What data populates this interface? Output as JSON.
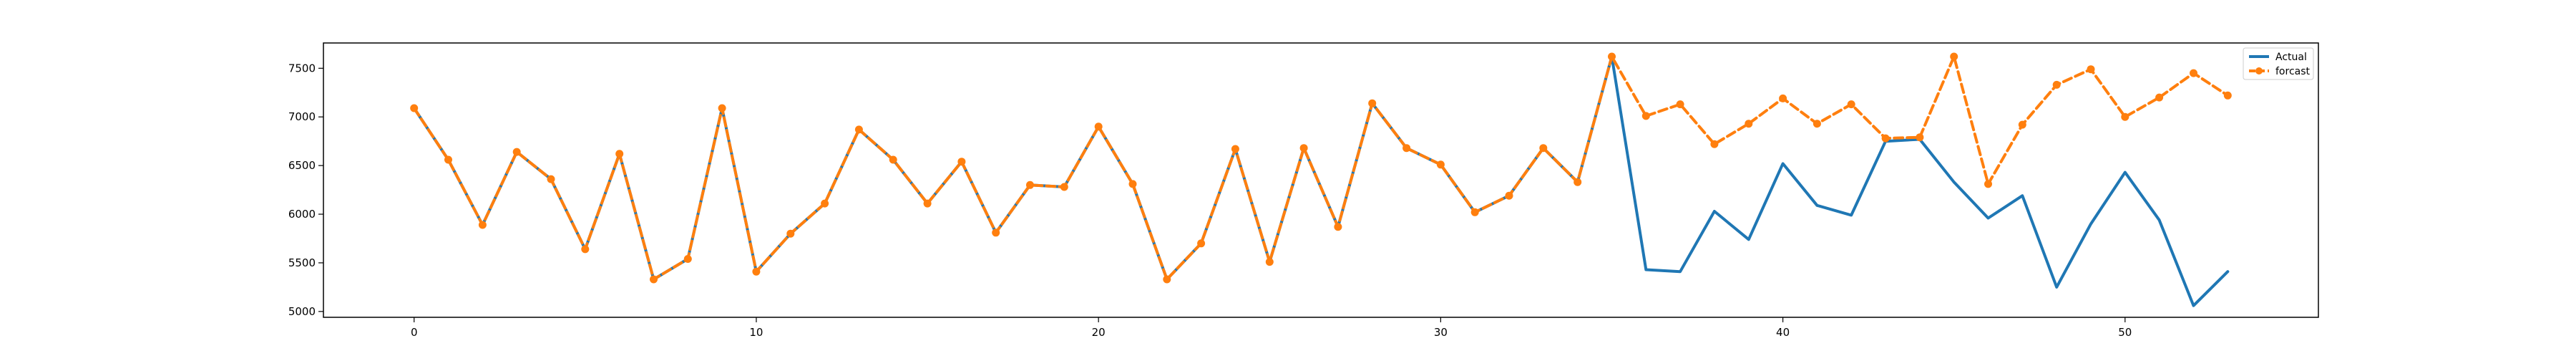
{
  "chart_data": {
    "type": "line",
    "title": "",
    "xlabel": "",
    "ylabel": "",
    "xlim": [
      -2.65,
      55.65
    ],
    "ylim": [
      4940,
      7760
    ],
    "x_ticks": [
      0,
      10,
      20,
      30,
      40,
      50
    ],
    "y_ticks": [
      5000,
      5500,
      6000,
      6500,
      7000,
      7500
    ],
    "grid": false,
    "legend_position": "top-right",
    "series": [
      {
        "name": "Actual",
        "color": "#1f77b4",
        "style": "solid",
        "marker": "none",
        "x": [
          0,
          1,
          2,
          3,
          4,
          5,
          6,
          7,
          8,
          9,
          10,
          11,
          12,
          13,
          14,
          15,
          16,
          17,
          18,
          19,
          20,
          21,
          22,
          23,
          24,
          25,
          26,
          27,
          28,
          29,
          30,
          31,
          32,
          33,
          34,
          35,
          36,
          37,
          38,
          39,
          40,
          41,
          42,
          43,
          44,
          45,
          46,
          47,
          48,
          49,
          50,
          51,
          52,
          53
        ],
        "values": [
          7090,
          6560,
          5890,
          6640,
          6360,
          5640,
          6620,
          5330,
          5540,
          7090,
          5410,
          5800,
          6110,
          6870,
          6560,
          6110,
          6540,
          5810,
          6300,
          6280,
          6900,
          6310,
          5330,
          5700,
          6670,
          5510,
          6680,
          5870,
          7140,
          6680,
          6510,
          6020,
          6190,
          6680,
          6330,
          7620,
          5430,
          5410,
          6030,
          5740,
          6520,
          6090,
          5990,
          6750,
          6770,
          6330,
          5960,
          6190,
          5250,
          5900,
          6430,
          5940,
          5060,
          5410
        ]
      },
      {
        "name": "forcast",
        "color": "#ff7f0e",
        "style": "dashed",
        "marker": "circle",
        "x": [
          0,
          1,
          2,
          3,
          4,
          5,
          6,
          7,
          8,
          9,
          10,
          11,
          12,
          13,
          14,
          15,
          16,
          17,
          18,
          19,
          20,
          21,
          22,
          23,
          24,
          25,
          26,
          27,
          28,
          29,
          30,
          31,
          32,
          33,
          34,
          35,
          36,
          37,
          38,
          39,
          40,
          41,
          42,
          43,
          44,
          45,
          46,
          47,
          48,
          49,
          50,
          51,
          52,
          53
        ],
        "values": [
          7090,
          6560,
          5890,
          6640,
          6360,
          5640,
          6620,
          5330,
          5540,
          7090,
          5410,
          5800,
          6110,
          6870,
          6560,
          6110,
          6540,
          5810,
          6300,
          6280,
          6900,
          6310,
          5330,
          5700,
          6670,
          5510,
          6680,
          5870,
          7140,
          6680,
          6510,
          6020,
          6190,
          6680,
          6330,
          7620,
          7010,
          7130,
          6720,
          6930,
          7190,
          6930,
          7130,
          6780,
          6790,
          7620,
          6310,
          6920,
          7330,
          7490,
          7000,
          7200,
          7450,
          7220
        ]
      }
    ]
  }
}
